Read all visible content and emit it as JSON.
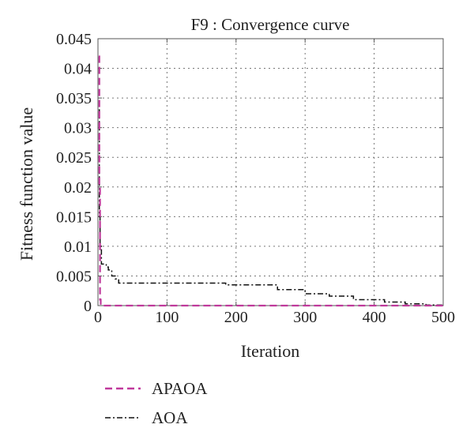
{
  "chart_data": {
    "type": "line",
    "title": "F9 : Convergence curve",
    "xlabel": "Iteration",
    "ylabel": "Fitness function value",
    "xlim": [
      0,
      500
    ],
    "ylim": [
      0,
      0.045
    ],
    "xticks": [
      0,
      100,
      200,
      300,
      400,
      500
    ],
    "xtick_labels": [
      "0",
      "100",
      "200",
      "300",
      "400",
      "500"
    ],
    "yticks": [
      0,
      0.005,
      0.01,
      0.015,
      0.02,
      0.025,
      0.03,
      0.035,
      0.04,
      0.045
    ],
    "ytick_labels": [
      "0",
      "0.005",
      "0.01",
      "0.015",
      "0.02",
      "0.025",
      "0.03",
      "0.035",
      "0.04",
      "0.045"
    ],
    "grid": true,
    "legend_position": "below",
    "series": [
      {
        "name": "APAOA",
        "color": "#c0399c",
        "dash": "dashed",
        "x": [
          1,
          2,
          3,
          4,
          500
        ],
        "y": [
          0.042,
          0.02,
          0.001,
          0,
          0
        ]
      },
      {
        "name": "AOA",
        "color": "#111111",
        "dash": "dashdot",
        "x": [
          1,
          2,
          3,
          5,
          10,
          12,
          15,
          20,
          25,
          30,
          180,
          185,
          255,
          260,
          295,
          300,
          330,
          335,
          365,
          370,
          410,
          415,
          440,
          445,
          470,
          475,
          500
        ],
        "y": [
          0.033,
          0.015,
          0.01,
          0.007,
          0.007,
          0.0065,
          0.006,
          0.005,
          0.0045,
          0.0038,
          0.0038,
          0.0035,
          0.0035,
          0.0027,
          0.0027,
          0.002,
          0.002,
          0.0016,
          0.0016,
          0.001,
          0.001,
          0.0006,
          0.0006,
          0.0003,
          0.0003,
          0.0001,
          0.0001
        ]
      }
    ]
  }
}
